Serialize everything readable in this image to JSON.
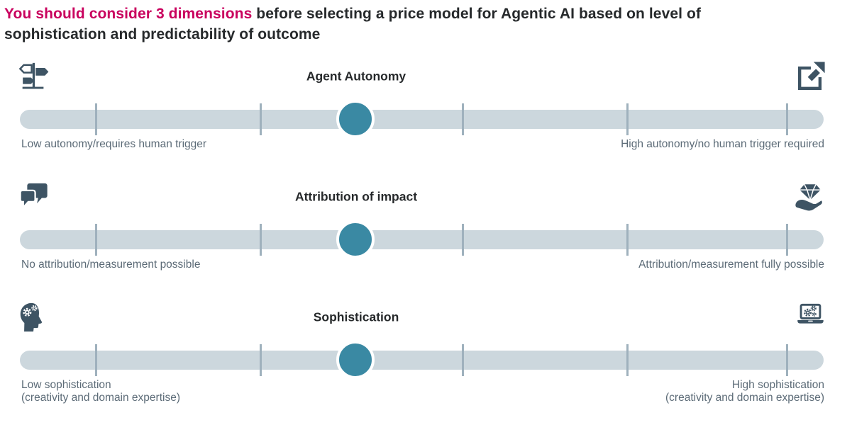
{
  "title": {
    "highlight": "You should consider 3 dimensions",
    "rest": " before selecting a price model for Agentic AI based on level of\nsophistication and predictability of outcome"
  },
  "colors": {
    "title_accent": "#c9015e",
    "title_text": "#26292b",
    "icon": "#3e5464",
    "slider_track": "#ccd7dd",
    "slider_tick": "#9fb1bd",
    "slider_knob": "#3a89a3",
    "label_text": "#5c6b77"
  },
  "sections": [
    {
      "heading": "Agent Autonomy",
      "left_icon": "signpost-icon",
      "right_icon": "share-out-arrow-icon",
      "left_label": "Low autonomy/requires human trigger",
      "right_label": "High autonomy/no human trigger required",
      "knob_position_pct": 41.75
    },
    {
      "heading": "Attribution of impact",
      "left_icon": "chat-bubbles-icon",
      "right_icon": "hand-holding-diamond-icon",
      "left_label": "No attribution/measurement possible",
      "right_label": "Attribution/measurement fully possible",
      "knob_position_pct": 41.75
    },
    {
      "heading": "Sophistication",
      "left_icon": "head-gears-icon",
      "right_icon": "laptop-gears-icon",
      "left_label": "Low sophistication\n(creativity and domain expertise)",
      "right_label": "High sophistication\n(creativity and domain expertise)",
      "knob_position_pct": 41.75
    }
  ]
}
